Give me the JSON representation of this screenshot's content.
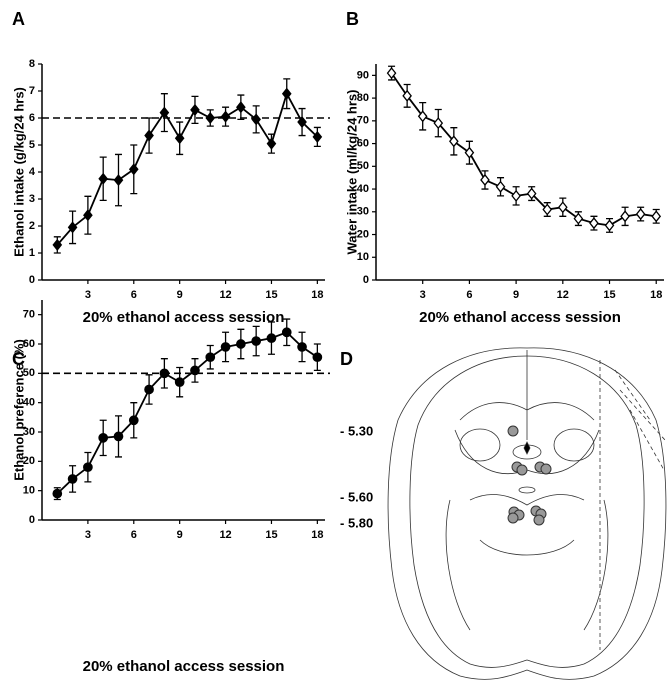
{
  "chart_data": [
    {
      "type": "line",
      "panel_label": "A",
      "ylabel": "Ethanol intake (g/kg/24 hrs)",
      "xlabel": "20% ethanol access session",
      "x": [
        1,
        2,
        3,
        4,
        5,
        6,
        7,
        8,
        9,
        10,
        11,
        12,
        13,
        14,
        15,
        16,
        17,
        18
      ],
      "series": [
        {
          "name": "Ethanol intake",
          "color": "#000000",
          "marker": "diamond",
          "marker_filled": true,
          "values": [
            1.3,
            1.95,
            2.4,
            3.75,
            3.7,
            4.1,
            5.35,
            6.2,
            5.25,
            6.3,
            6.0,
            6.05,
            6.4,
            5.95,
            5.05,
            6.9,
            5.85,
            5.3
          ],
          "errors": [
            0.3,
            0.6,
            0.7,
            0.8,
            0.95,
            0.9,
            0.65,
            0.7,
            0.6,
            0.5,
            0.3,
            0.35,
            0.45,
            0.5,
            0.35,
            0.55,
            0.5,
            0.35
          ]
        }
      ],
      "xlim": [
        0,
        18.5
      ],
      "xticks": [
        3,
        6,
        9,
        12,
        15,
        18
      ],
      "ylim": [
        0,
        8
      ],
      "yticks": [
        0,
        1,
        2,
        3,
        4,
        5,
        6,
        7,
        8
      ],
      "reference_line": 6
    },
    {
      "type": "line",
      "panel_label": "B",
      "ylabel": "Water intake (ml/kg/24 hrs)",
      "xlabel": "20% ethanol access session",
      "x": [
        1,
        2,
        3,
        4,
        5,
        6,
        7,
        8,
        9,
        10,
        11,
        12,
        13,
        14,
        15,
        16,
        17,
        18
      ],
      "series": [
        {
          "name": "Water intake",
          "color": "#000000",
          "marker": "diamond",
          "marker_filled": false,
          "values": [
            91,
            81,
            72,
            69,
            61,
            56,
            44,
            41,
            37,
            38,
            31,
            32,
            27,
            25,
            24,
            28,
            29,
            28
          ],
          "errors": [
            3,
            5,
            6,
            6,
            6,
            5,
            4,
            4,
            4,
            3,
            3,
            4,
            3,
            3,
            3,
            4,
            3,
            3
          ]
        }
      ],
      "xlim": [
        0,
        18.5
      ],
      "xticks": [
        3,
        6,
        9,
        12,
        15,
        18
      ],
      "ylim": [
        0,
        95
      ],
      "yticks": [
        0,
        10,
        20,
        30,
        40,
        50,
        60,
        70,
        80,
        90
      ]
    },
    {
      "type": "line",
      "panel_label": "C",
      "ylabel": "Ethanol preference (%)",
      "xlabel": "20% ethanol access session",
      "x": [
        1,
        2,
        3,
        4,
        5,
        6,
        7,
        8,
        9,
        10,
        11,
        12,
        13,
        14,
        15,
        16,
        17,
        18
      ],
      "series": [
        {
          "name": "Ethanol preference",
          "color": "#000000",
          "marker": "circle",
          "marker_filled": true,
          "values": [
            9,
            14,
            18,
            28,
            28.5,
            34,
            44.5,
            50,
            47,
            51,
            55.5,
            59,
            60,
            61,
            62,
            64,
            59,
            55.5
          ],
          "errors": [
            2,
            4.5,
            5,
            6,
            7,
            6,
            5,
            5,
            5,
            4,
            4,
            5,
            5,
            5,
            5.5,
            4.5,
            5,
            4.5
          ]
        }
      ],
      "xlim": [
        0,
        18.5
      ],
      "xticks": [
        3,
        6,
        9,
        12,
        15,
        18
      ],
      "ylim": [
        0,
        75
      ],
      "yticks": [
        0,
        10,
        20,
        30,
        40,
        50,
        60,
        70
      ],
      "reference_line": 50
    }
  ],
  "diagram": {
    "panel_label": "D",
    "levels": [
      "- 5.30",
      "- 5.60",
      "- 5.80"
    ]
  }
}
